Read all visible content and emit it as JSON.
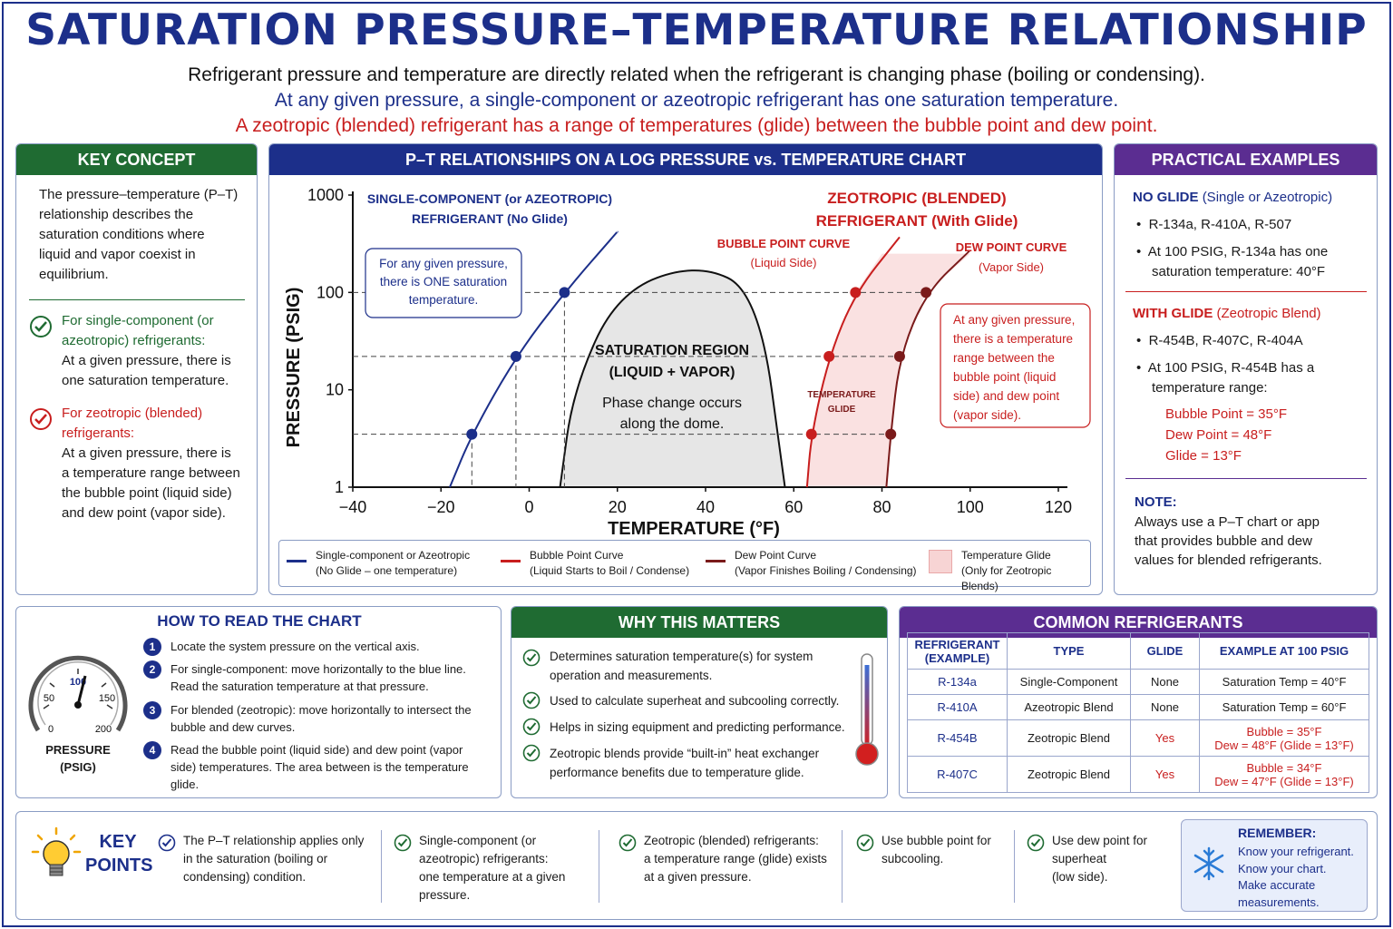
{
  "title": "SATURATION PRESSURE–TEMPERATURE RELATIONSHIP",
  "subtitle1": "Refrigerant pressure and temperature are directly related when the refrigerant is changing phase (boiling or condensing).",
  "subtitle2": "At any given pressure, a single-component or azeotropic refrigerant has one saturation temperature.",
  "subtitle3": "A zeotropic (blended) refrigerant has a range of temperatures (glide) between the bubble point and dew point.",
  "key_concept": {
    "header": "KEY CONCEPT",
    "body_lines": [
      "The pressure–temperature (P–T)",
      "relationship describes the",
      "saturation conditions where",
      "liquid and vapor coexist in",
      "equilibrium."
    ],
    "item1_title_lines": [
      "For single-component (or",
      "azeotropic) refrigerants:"
    ],
    "item1_body_lines": [
      "At a given pressure, there is",
      "one saturation temperature."
    ],
    "item2_title_lines": [
      "For zeotropic (blended)",
      "refrigerants:"
    ],
    "item2_body_lines": [
      "At a given pressure, there is",
      "a temperature range between",
      "the bubble point (liquid side)",
      "and dew point (vapor side)."
    ]
  },
  "chart": {
    "header": "P–T RELATIONSHIPS ON A LOG PRESSURE vs. TEMPERATURE CHART",
    "ylabel": "PRESSURE (PSIG)",
    "xlabel": "TEMPERATURE (°F)",
    "y_ticks": [
      "1000",
      "100",
      "10",
      "1"
    ],
    "x_ticks": [
      "−40",
      "−20",
      "0",
      "20",
      "40",
      "60",
      "80",
      "100",
      "120"
    ],
    "single_label_lines": [
      "SINGLE-COMPONENT (or AZEOTROPIC)",
      "REFRIGERANT (No Glide)"
    ],
    "zeo_label_lines": [
      "ZEOTROPIC (BLENDED)",
      "REFRIGERANT (With Glide)"
    ],
    "bubble_label_lines": [
      "BUBBLE POINT CURVE",
      "(Liquid Side)"
    ],
    "dew_label_lines": [
      "DEW POINT CURVE",
      "(Vapor Side)"
    ],
    "callout_blue_lines": [
      "For any given pressure,",
      "there is ONE saturation",
      "temperature."
    ],
    "callout_red_lines": [
      "At any given pressure,",
      "there is a temperature",
      "range between the",
      "bubble point (liquid",
      "side) and dew point",
      "(vapor side)."
    ],
    "saturation_lines": [
      "SATURATION REGION",
      "(LIQUID + VAPOR)"
    ],
    "phase_lines": [
      "Phase change occurs",
      "along the dome."
    ],
    "glide_lines": [
      "TEMPERATURE",
      "GLIDE"
    ],
    "legend": [
      {
        "line1": "Single-component or Azeotropic",
        "line2": "(No Glide – one temperature)",
        "color": "#1c2f8a"
      },
      {
        "line1": "Bubble Point Curve",
        "line2": "(Liquid Starts to Boil / Condense)",
        "color": "#c81e1e"
      },
      {
        "line1": "Dew Point Curve",
        "line2": "(Vapor Finishes Boiling / Condensing)",
        "color": "#7a1a1a"
      },
      {
        "line1": "Temperature Glide",
        "line2": "(Only for Zeotropic Blends)",
        "color": "#f7d4d4"
      }
    ]
  },
  "chart_data": {
    "type": "line",
    "xlabel": "TEMPERATURE (°F)",
    "ylabel": "PRESSURE (PSIG)",
    "xlim": [
      -40,
      120
    ],
    "ylim": [
      1,
      1000
    ],
    "yscale": "log",
    "grid": false,
    "series": [
      {
        "name": "Single-component or Azeotropic",
        "x": [
          -18,
          -13,
          -3,
          8,
          20
        ],
        "y": [
          1,
          3.5,
          22,
          100,
          420
        ]
      },
      {
        "name": "Bubble Point Curve",
        "x": [
          63,
          64,
          68,
          74,
          84
        ],
        "y": [
          1,
          3.5,
          22,
          100,
          370
        ]
      },
      {
        "name": "Dew Point Curve",
        "x": [
          81,
          82,
          84,
          90,
          100
        ],
        "y": [
          1,
          3.5,
          22,
          100,
          270
        ]
      }
    ],
    "dome": {
      "x": [
        7,
        10,
        20,
        38,
        52,
        58
      ],
      "y": [
        1,
        10,
        100,
        200,
        100,
        1
      ]
    }
  },
  "practical": {
    "header": "PRACTICAL EXAMPLES",
    "noglide_title": "NO GLIDE",
    "noglide_sub": "(Single or Azeotropic)",
    "noglide_b1": "R-134a, R-410A, R-507",
    "noglide_b2_lines": [
      "At 100 PSIG, R-134a has one",
      "saturation temperature: 40°F"
    ],
    "glide_title": "WITH GLIDE",
    "glide_sub": "(Zeotropic Blend)",
    "glide_b1": "R-454B, R-407C, R-404A",
    "glide_b2_lines": [
      "At 100 PSIG, R-454B has a",
      "temperature range:"
    ],
    "bubble": "Bubble Point = 35°F",
    "dew": "Dew Point = 48°F",
    "glide": "Glide = 13°F",
    "note_title": "NOTE:",
    "note_lines": [
      "Always use a  P–T chart or app",
      "that provides bubble and dew",
      "values for blended refrigerants."
    ]
  },
  "how_to": {
    "header": "HOW TO READ THE CHART",
    "gauge_labels": [
      "100",
      "50",
      "150",
      "0",
      "200"
    ],
    "gauge_caption_lines": [
      "PRESSURE",
      "(PSIG)"
    ],
    "steps": [
      {
        "n": "1",
        "lines": [
          "Locate the system pressure on the vertical axis."
        ]
      },
      {
        "n": "2",
        "lines": [
          "For single-component: move horizontally to the blue line.",
          "Read the saturation temperature at that pressure."
        ]
      },
      {
        "n": "3",
        "lines": [
          "For blended (zeotropic): move horizontally to intersect the",
          "bubble and dew curves."
        ]
      },
      {
        "n": "4",
        "lines": [
          "Read the bubble point (liquid side) and dew point (vapor",
          "side) temperatures. The area between is the temperature glide."
        ]
      }
    ]
  },
  "why": {
    "header": "WHY THIS MATTERS",
    "items": [
      [
        "Determines saturation temperature(s) for system",
        "operation and measurements."
      ],
      [
        "Used to calculate superheat and subcooling correctly."
      ],
      [
        "Helps in sizing equipment and predicting performance."
      ],
      [
        "Zeotropic blends provide “built-in” heat exchanger",
        "performance benefits due to temperature glide."
      ]
    ]
  },
  "common": {
    "header": "COMMON REFRIGERANTS",
    "columns": [
      "REFRIGERANT\n(EXAMPLE)",
      "TYPE",
      "GLIDE",
      "EXAMPLE AT 100 PSIG"
    ],
    "col1_lines": [
      "REFRIGERANT",
      "(EXAMPLE)"
    ],
    "col2": "TYPE",
    "col3": "GLIDE",
    "col4": "EXAMPLE AT 100 PSIG",
    "rows": [
      {
        "ref": "R-134a",
        "type": "Single-Component",
        "glide": "None",
        "ex1": "Saturation Temp = 40°F",
        "ex2": ""
      },
      {
        "ref": "R-410A",
        "type": "Azeotropic Blend",
        "glide": "None",
        "ex1": "Saturation Temp = 60°F",
        "ex2": ""
      },
      {
        "ref": "R-454B",
        "type": "Zeotropic Blend",
        "glide": "Yes",
        "ex1": "Bubble = 35°F",
        "ex2": "Dew = 48°F (Glide = 13°F)"
      },
      {
        "ref": "R-407C",
        "type": "Zeotropic Blend",
        "glide": "Yes",
        "ex1": "Bubble = 34°F",
        "ex2": "Dew = 47°F (Glide = 13°F)"
      }
    ]
  },
  "key_points": {
    "title_lines": [
      "KEY",
      "POINTS"
    ],
    "items": [
      [
        "The P–T relationship applies only",
        "in the saturation (boiling or",
        "condensing) condition."
      ],
      [
        "Single-component (or",
        "azeotropic) refrigerants:",
        "one temperature at a given",
        "pressure."
      ],
      [
        "Zeotropic (blended) refrigerants:",
        "a temperature range (glide) exists",
        "at a given pressure."
      ],
      [
        "Use bubble point for",
        "subcooling."
      ],
      [
        "Use dew point for",
        "superheat",
        "(low side)."
      ]
    ],
    "remember_title": "REMEMBER:",
    "remember_lines": [
      "Know your refrigerant.",
      "Know your chart.",
      "Make accurate",
      "measurements."
    ]
  }
}
